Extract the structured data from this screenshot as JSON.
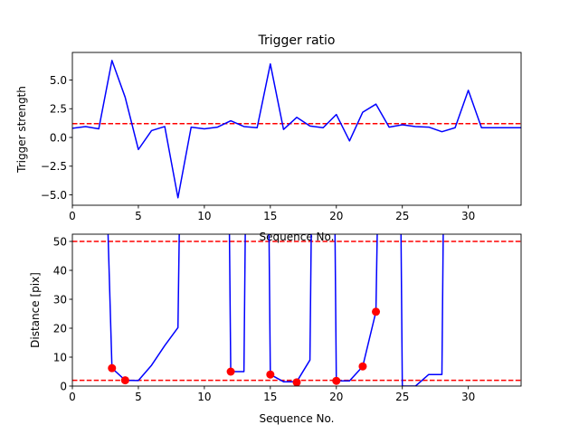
{
  "chart_data": [
    {
      "type": "line",
      "title": "Trigger ratio",
      "xlabel": "Sequence No.",
      "ylabel": "Trigger strength",
      "xlim": [
        0,
        34
      ],
      "ylim": [
        -5.9,
        7.4
      ],
      "xticks": [
        0,
        5,
        10,
        15,
        20,
        25,
        30
      ],
      "yticks": [
        -5.0,
        -2.5,
        0.0,
        2.5,
        5.0
      ],
      "ytick_labels": [
        "−5.0",
        "−2.5",
        "0.0",
        "2.5",
        "5.0"
      ],
      "grid": false,
      "series": [
        {
          "color": "#0000ff",
          "x": [
            0,
            1,
            2,
            3,
            4,
            5,
            6,
            7,
            8,
            9,
            10,
            11,
            12,
            13,
            14,
            15,
            16,
            17,
            18,
            19,
            20,
            21,
            22,
            23,
            24,
            25,
            26,
            27,
            28,
            29,
            30,
            31,
            32,
            33,
            34
          ],
          "y": [
            0.8,
            0.95,
            0.75,
            6.7,
            3.5,
            -1.05,
            0.6,
            0.95,
            -5.25,
            0.9,
            0.75,
            0.9,
            1.45,
            0.95,
            0.85,
            6.4,
            0.7,
            1.75,
            1.0,
            0.85,
            2.0,
            -0.3,
            2.2,
            2.9,
            0.9,
            1.1,
            0.95,
            0.9,
            0.5,
            0.85,
            4.1,
            0.85,
            0.85,
            0.85,
            0.85
          ]
        }
      ],
      "hlines": [
        {
          "y": 1.2,
          "color": "#ff0000",
          "style": "dashed"
        }
      ]
    },
    {
      "type": "line",
      "title": "",
      "xlabel": "Sequence No.",
      "ylabel": "Distance [pix]",
      "xlim": [
        0,
        34
      ],
      "ylim": [
        0,
        52.5
      ],
      "xticks": [
        0,
        5,
        10,
        15,
        20,
        25,
        30
      ],
      "yticks": [
        0,
        10,
        20,
        30,
        40,
        50
      ],
      "grid": false,
      "series": [
        {
          "color": "#0000ff",
          "x": [
            2.7,
            3,
            4,
            5,
            6,
            7,
            8,
            8.1,
            11.9,
            12,
            13,
            13.1,
            14.9,
            15,
            16,
            17,
            18,
            18.1,
            19.9,
            20,
            21,
            22,
            23,
            23.1,
            24.9,
            25,
            26,
            27,
            28,
            28.1
          ],
          "y": [
            53,
            6.2,
            2.0,
            1.9,
            7.2,
            14.0,
            20.2,
            53,
            53,
            5.0,
            5.0,
            53,
            53,
            4.0,
            1.5,
            1.5,
            9.0,
            53,
            53,
            1.8,
            1.8,
            6.8,
            25.7,
            53,
            53,
            0,
            0,
            4.0,
            4.0,
            53
          ]
        }
      ],
      "markers": {
        "color": "#ff0000",
        "x": [
          3,
          4,
          12,
          15,
          17,
          20,
          22,
          23
        ],
        "y": [
          6.2,
          2.0,
          5.0,
          4.0,
          1.3,
          1.8,
          6.8,
          25.7
        ]
      },
      "hlines": [
        {
          "y": 50,
          "color": "#ff0000",
          "style": "dashed"
        },
        {
          "y": 2,
          "color": "#ff0000",
          "style": "dashed"
        }
      ]
    }
  ]
}
